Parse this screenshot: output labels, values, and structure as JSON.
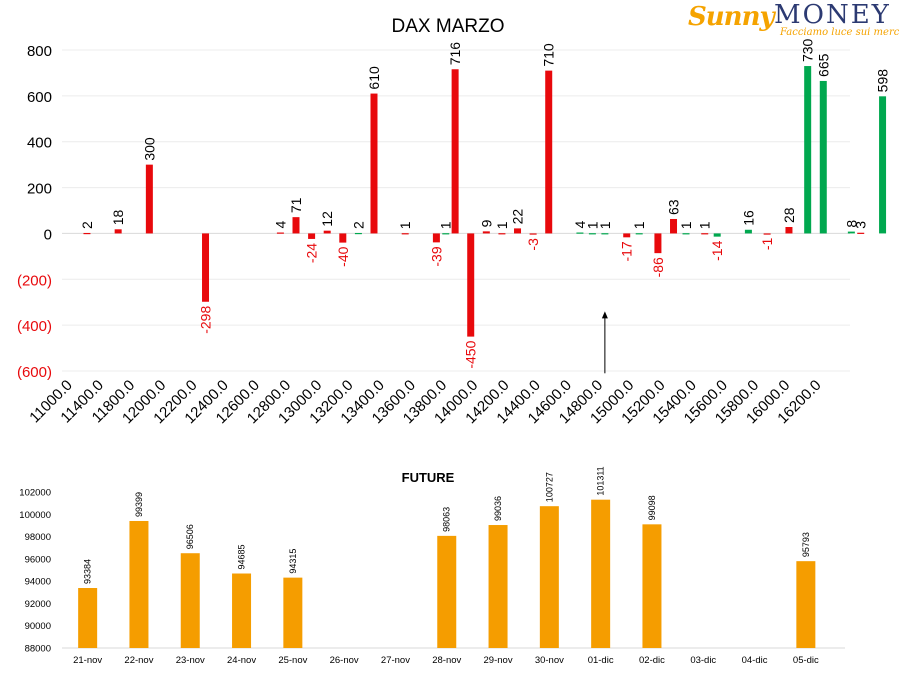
{
  "logo": {
    "brand_left": "Sunny",
    "brand_right": "MONEY",
    "tagline": "Facciamo luce sui mercati"
  },
  "colors": {
    "put": "#e8090c",
    "call": "#00a84f",
    "future": "#f59d00",
    "negative_label": "#e8090c",
    "label": "#000000"
  },
  "chart_data": [
    {
      "type": "bar",
      "title": "DAX MARZO",
      "xlabel": "",
      "ylabel": "",
      "ylim": [
        -600,
        800
      ],
      "yticks": [
        -600,
        -400,
        -200,
        0,
        200,
        400,
        600,
        800
      ],
      "ytick_labels": [
        "(600)",
        "(400)",
        "(200)",
        "0",
        "200",
        "400",
        "600",
        "800"
      ],
      "grid": true,
      "categories": [
        "11000.0",
        "11400.0",
        "11800.0",
        "12000.0",
        "12200.0",
        "12400.0",
        "12600.0",
        "12800.0",
        "13000.0",
        "13200.0",
        "13400.0",
        "13600.0",
        "13800.0",
        "14000.0",
        "14200.0",
        "14400.0",
        "14600.0",
        "14800.0",
        "15000.0",
        "15200.0",
        "15400.0",
        "15600.0",
        "15800.0",
        "16000.0",
        "16200.0"
      ],
      "bars": [
        {
          "x": 0.3,
          "value": 2,
          "color": "put",
          "label": "2"
        },
        {
          "x": 1.3,
          "value": 18,
          "color": "put",
          "label": "18"
        },
        {
          "x": 2.3,
          "value": 300,
          "color": "put",
          "label": "300"
        },
        {
          "x": 4.1,
          "value": -298,
          "color": "put",
          "label": "-298"
        },
        {
          "x": 6.5,
          "value": 4,
          "color": "put",
          "label": "4"
        },
        {
          "x": 7.0,
          "value": 71,
          "color": "put",
          "label": "71"
        },
        {
          "x": 7.5,
          "value": -24,
          "color": "put",
          "label": "-24"
        },
        {
          "x": 8.0,
          "value": 12,
          "color": "put",
          "label": "12"
        },
        {
          "x": 8.5,
          "value": -40,
          "color": "put",
          "label": "-40"
        },
        {
          "x": 9.0,
          "value": 2,
          "color": "call",
          "label": "2"
        },
        {
          "x": 9.5,
          "value": 610,
          "color": "put",
          "label": "610"
        },
        {
          "x": 10.5,
          "value": 1,
          "color": "put",
          "label": "1"
        },
        {
          "x": 11.5,
          "value": -39,
          "color": "put",
          "label": "-39"
        },
        {
          "x": 11.8,
          "value": 1,
          "color": "call",
          "label": "1"
        },
        {
          "x": 12.1,
          "value": 716,
          "color": "put",
          "label": "716"
        },
        {
          "x": 12.6,
          "value": -450,
          "color": "put",
          "label": "-450"
        },
        {
          "x": 13.1,
          "value": 9,
          "color": "put",
          "label": "9"
        },
        {
          "x": 13.6,
          "value": 1,
          "color": "put",
          "label": "1"
        },
        {
          "x": 14.1,
          "value": 22,
          "color": "put",
          "label": "22"
        },
        {
          "x": 14.6,
          "value": -3,
          "color": "put",
          "label": "-3"
        },
        {
          "x": 15.1,
          "value": 710,
          "color": "put",
          "label": "710"
        },
        {
          "x": 16.1,
          "value": 4,
          "color": "call",
          "label": "4"
        },
        {
          "x": 16.5,
          "value": 1,
          "color": "call",
          "label": "1"
        },
        {
          "x": 16.9,
          "value": 1,
          "color": "call",
          "label": "1"
        },
        {
          "x": 17.6,
          "value": -17,
          "color": "put",
          "label": "-17"
        },
        {
          "x": 18.0,
          "value": 1,
          "color": "call",
          "label": "1"
        },
        {
          "x": 18.6,
          "value": -86,
          "color": "put",
          "label": "-86"
        },
        {
          "x": 19.1,
          "value": 63,
          "color": "put",
          "label": "63"
        },
        {
          "x": 19.5,
          "value": 1,
          "color": "call",
          "label": "1"
        },
        {
          "x": 20.1,
          "value": 1,
          "color": "put",
          "label": "1"
        },
        {
          "x": 20.5,
          "value": -14,
          "color": "call",
          "label": "-14"
        },
        {
          "x": 21.5,
          "value": 16,
          "color": "call",
          "label": "16"
        },
        {
          "x": 22.1,
          "value": -1,
          "color": "put",
          "label": "-1"
        },
        {
          "x": 22.8,
          "value": 28,
          "color": "put",
          "label": "28"
        },
        {
          "x": 23.4,
          "value": 730,
          "color": "call",
          "label": "730"
        },
        {
          "x": 23.9,
          "value": 665,
          "color": "call",
          "label": "665"
        },
        {
          "x": 24.8,
          "value": 8,
          "color": "call",
          "label": "8"
        },
        {
          "x": 25.1,
          "value": 3,
          "color": "put",
          "label": "3"
        },
        {
          "x": 25.8,
          "value": 598,
          "color": "call",
          "label": "598"
        }
      ],
      "annotation": {
        "type": "arrow",
        "x": 16.9,
        "from_value": -610,
        "to_value": -340
      }
    },
    {
      "type": "bar",
      "title": "FUTURE",
      "xlabel": "",
      "ylabel": "",
      "ylim": [
        88000,
        102000
      ],
      "yticks": [
        88000,
        90000,
        92000,
        94000,
        96000,
        98000,
        100000,
        102000
      ],
      "ytick_labels": [
        "88000",
        "90000",
        "92000",
        "94000",
        "96000",
        "98000",
        "100000",
        "102000"
      ],
      "grid": false,
      "categories": [
        "21-nov",
        "22-nov",
        "23-nov",
        "24-nov",
        "25-nov",
        "26-nov",
        "27-nov",
        "28-nov",
        "29-nov",
        "30-nov",
        "01-dic",
        "02-dic",
        "03-dic",
        "04-dic",
        "05-dic"
      ],
      "values": [
        93384,
        99399,
        96506,
        94685,
        94315,
        null,
        null,
        98063,
        99036,
        100727,
        101311,
        99098,
        null,
        null,
        95793
      ],
      "labels": [
        "93384",
        "99399",
        "96506",
        "94685",
        "94315",
        "",
        "",
        "98063",
        "99036",
        "100727",
        "101311",
        "99098",
        "",
        "",
        "95793"
      ]
    }
  ]
}
